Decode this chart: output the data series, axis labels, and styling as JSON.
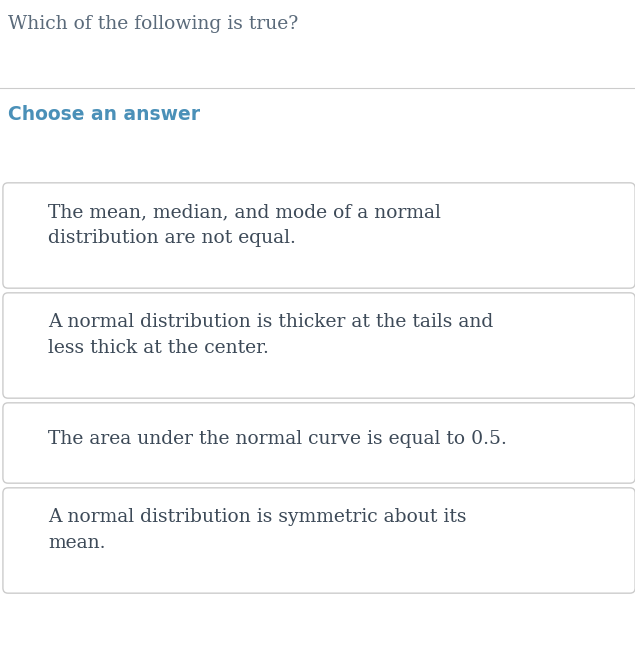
{
  "question": "Which of the following is true?",
  "choose_label": "Choose an answer",
  "options": [
    "The mean, median, and mode of a normal\ndistribution are not equal.",
    "A normal distribution is thicker at the tails and\nless thick at the center.",
    "The area under the normal curve is equal to 0.5.",
    "A normal distribution is symmetric about its\nmean."
  ],
  "bg_color": "#ffffff",
  "question_color": "#5a6a7a",
  "choose_color": "#4a90b8",
  "option_text_color": "#3d4a58",
  "box_bg_color": "#ffffff",
  "box_edge_color": "#cccccc",
  "separator_color": "#cccccc",
  "question_fontsize": 13.5,
  "choose_fontsize": 13.5,
  "option_fontsize": 13.5
}
